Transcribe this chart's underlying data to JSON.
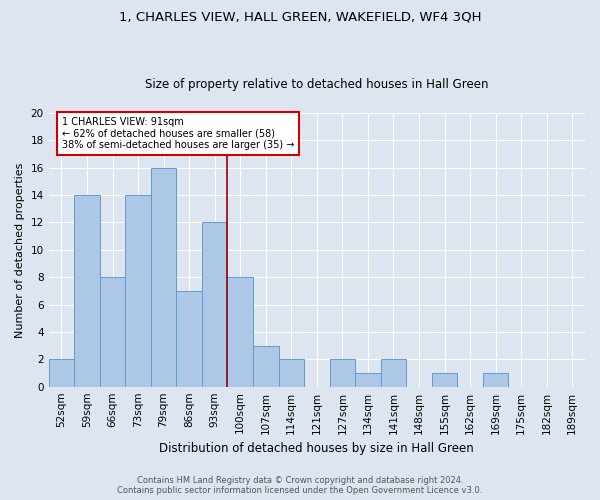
{
  "title": "1, CHARLES VIEW, HALL GREEN, WAKEFIELD, WF4 3QH",
  "subtitle": "Size of property relative to detached houses in Hall Green",
  "xlabel": "Distribution of detached houses by size in Hall Green",
  "ylabel": "Number of detached properties",
  "categories": [
    "52sqm",
    "59sqm",
    "66sqm",
    "73sqm",
    "79sqm",
    "86sqm",
    "93sqm",
    "100sqm",
    "107sqm",
    "114sqm",
    "121sqm",
    "127sqm",
    "134sqm",
    "141sqm",
    "148sqm",
    "155sqm",
    "162sqm",
    "169sqm",
    "175sqm",
    "182sqm",
    "189sqm"
  ],
  "values": [
    2,
    14,
    8,
    14,
    16,
    7,
    12,
    8,
    3,
    2,
    0,
    2,
    1,
    2,
    0,
    1,
    0,
    1,
    0,
    0,
    0
  ],
  "bar_color": "#adc8e6",
  "bar_edge_color": "#6699cc",
  "background_color": "#dde5f0",
  "grid_color": "#ffffff",
  "vline_color": "#990000",
  "annotation_box_color": "#ffffff",
  "annotation_box_edge_color": "#cc0000",
  "ylim": [
    0,
    20
  ],
  "yticks": [
    0,
    2,
    4,
    6,
    8,
    10,
    12,
    14,
    16,
    18,
    20
  ],
  "footer_line1": "Contains HM Land Registry data © Crown copyright and database right 2024.",
  "footer_line2": "Contains public sector information licensed under the Open Government Licence v3.0.",
  "title_fontsize": 9.5,
  "subtitle_fontsize": 8.5,
  "xlabel_fontsize": 8.5,
  "ylabel_fontsize": 8.0,
  "tick_fontsize": 7.5,
  "footer_fontsize": 6.0
}
